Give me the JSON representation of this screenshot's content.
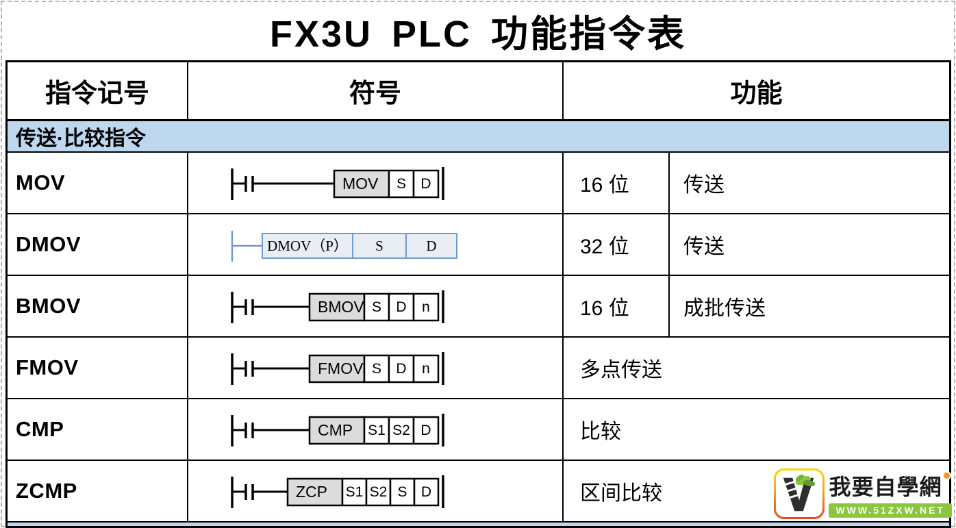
{
  "page": {
    "title": "FX3U PLC 功能指令表"
  },
  "table": {
    "columns": [
      "指令记号",
      "符号",
      "功能"
    ],
    "section_header": "传送·比较指令",
    "rows": [
      {
        "name": "MOV",
        "symbol": {
          "style": "black",
          "cells": [
            {
              "text": "MOV",
              "type": "label",
              "w": 80
            },
            {
              "text": "S",
              "w": 36
            },
            {
              "text": "D",
              "w": 36
            }
          ]
        },
        "function": {
          "split": true,
          "bits": "16 位",
          "desc": "传送"
        }
      },
      {
        "name": "DMOV",
        "symbol": {
          "style": "blue",
          "cells": [
            {
              "text": "DMOV（P）",
              "type": "label",
              "w": 132
            },
            {
              "text": "S",
              "w": 78
            },
            {
              "text": "D",
              "w": 74
            }
          ]
        },
        "function": {
          "split": true,
          "bits": "32 位",
          "desc": "传送"
        }
      },
      {
        "name": "BMOV",
        "symbol": {
          "style": "black",
          "cells": [
            {
              "text": "BMOV",
              "type": "label",
              "w": 80
            },
            {
              "text": "S",
              "w": 36
            },
            {
              "text": "D",
              "w": 36
            },
            {
              "text": "n",
              "w": 36
            }
          ]
        },
        "function": {
          "split": true,
          "bits": "16 位",
          "desc": "成批传送"
        }
      },
      {
        "name": "FMOV",
        "symbol": {
          "style": "black",
          "cells": [
            {
              "text": "FMOV",
              "type": "label",
              "w": 80
            },
            {
              "text": "S",
              "w": 36
            },
            {
              "text": "D",
              "w": 36
            },
            {
              "text": "n",
              "w": 36
            }
          ]
        },
        "function": {
          "split": false,
          "text": "多点传送"
        }
      },
      {
        "name": "CMP",
        "symbol": {
          "style": "black",
          "cells": [
            {
              "text": "CMP",
              "type": "label",
              "w": 80
            },
            {
              "text": "S1",
              "w": 36
            },
            {
              "text": "S2",
              "w": 36
            },
            {
              "text": "D",
              "w": 36
            }
          ]
        },
        "function": {
          "split": false,
          "text": "比较"
        }
      },
      {
        "name": "ZCMP",
        "symbol": {
          "style": "black",
          "cells": [
            {
              "text": "ZCP",
              "type": "label",
              "w": 80
            },
            {
              "text": "S1",
              "w": 35
            },
            {
              "text": "S2",
              "w": 35
            },
            {
              "text": "S",
              "w": 35
            },
            {
              "text": "D",
              "w": 35
            }
          ]
        },
        "function": {
          "split": false,
          "text": "区间比较"
        }
      }
    ]
  },
  "watermark": {
    "site_name": "我要自學網",
    "site_url": "WWW.51ZXW.NET"
  },
  "colors": {
    "section_bg": "#BDD7EE",
    "label_cell_bg": "#DCDCDC",
    "blue_stroke": "#6E9BD1",
    "blue_fill": "#E9EEF5",
    "logo_green": "#8CC63F",
    "logo_orange": "#F7941D"
  }
}
